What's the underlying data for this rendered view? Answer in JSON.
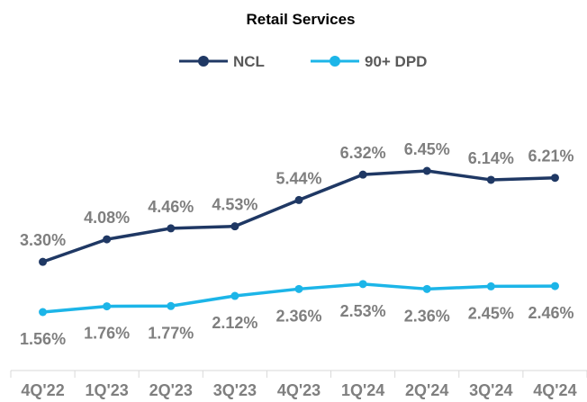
{
  "chart_data": {
    "type": "line",
    "title": "Retail Services",
    "xlabel": "",
    "ylabel": "",
    "categories": [
      "4Q'22",
      "1Q'23",
      "2Q'23",
      "3Q'23",
      "4Q'23",
      "1Q'24",
      "2Q'24",
      "3Q'24",
      "4Q'24"
    ],
    "series": [
      {
        "name": "NCL",
        "color": "#1f3864",
        "values": [
          3.3,
          4.08,
          4.46,
          4.53,
          5.44,
          6.32,
          6.45,
          6.14,
          6.21
        ],
        "labels": [
          "3.30%",
          "4.08%",
          "4.46%",
          "4.53%",
          "5.44%",
          "6.32%",
          "6.45%",
          "6.14%",
          "6.21%"
        ],
        "label_position": "above"
      },
      {
        "name": "90+ DPD",
        "color": "#1cb5e8",
        "values": [
          1.56,
          1.76,
          1.77,
          2.12,
          2.36,
          2.53,
          2.36,
          2.45,
          2.46
        ],
        "labels": [
          "1.56%",
          "1.76%",
          "1.77%",
          "2.12%",
          "2.36%",
          "2.53%",
          "2.36%",
          "2.45%",
          "2.46%"
        ],
        "label_position": "below"
      }
    ],
    "legend_position": "top-center",
    "grid": false,
    "y_axis_visible": false
  }
}
